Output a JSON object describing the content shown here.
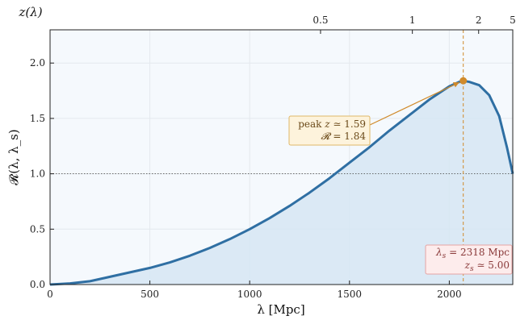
{
  "chart_data": {
    "type": "area",
    "xlabel": "λ [Mpc]",
    "ylabel": "𝓡(λ, λ_s)",
    "top_axis_label": "z(λ)",
    "xlim": [
      0,
      2318
    ],
    "ylim": [
      0,
      2.3
    ],
    "xticks": [
      0,
      500,
      1000,
      1500,
      2000
    ],
    "xtick_labels": [
      "0",
      "500",
      "1000",
      "1500",
      "2000"
    ],
    "yticks": [
      0.0,
      0.5,
      1.0,
      1.5,
      2.0
    ],
    "ytick_labels": [
      "0.0",
      "0.5",
      "1.0",
      "1.5",
      "2.0"
    ],
    "top_ticks": [
      {
        "label": "0.5",
        "x": 1355
      },
      {
        "label": "1",
        "x": 1815
      },
      {
        "label": "2",
        "x": 2147
      },
      {
        "label": "5",
        "x": 2318
      }
    ],
    "grid": true,
    "reference_line_y": 1.0,
    "series": [
      {
        "x": [
          0,
          100,
          200,
          300,
          400,
          500,
          600,
          700,
          800,
          900,
          1000,
          1100,
          1200,
          1300,
          1400,
          1500,
          1600,
          1700,
          1800,
          1900,
          2000,
          2050,
          2070,
          2100,
          2150,
          2200,
          2250,
          2290,
          2318
        ],
        "y": [
          0.0,
          0.01,
          0.03,
          0.07,
          0.11,
          0.15,
          0.2,
          0.26,
          0.33,
          0.41,
          0.5,
          0.6,
          0.71,
          0.83,
          0.96,
          1.1,
          1.24,
          1.39,
          1.53,
          1.67,
          1.79,
          1.83,
          1.84,
          1.83,
          1.8,
          1.71,
          1.52,
          1.23,
          1.0
        ]
      }
    ],
    "peak": {
      "x": 2070,
      "y": 1.84
    },
    "annotation_peak": {
      "line1_prefix": "peak ",
      "line1_var": "z",
      "line1_value": " ≃ 1.59",
      "line2_var": "𝓡",
      "line2_value": " = 1.84"
    },
    "annotation_source": {
      "line1_var": "λ",
      "line1_sub": "s",
      "line1_value": " = 2318 Mpc",
      "line2_var": "z",
      "line2_sub": "s",
      "line2_value": " ≃ 5.00"
    },
    "colors": {
      "line": "#2f6fa3",
      "fill": "#d6e6f3",
      "plot_bg": "#f5f9fd",
      "peak": "#d08a2a",
      "peak_box_bg": "#fdf3dc",
      "peak_box_border": "#e0b867",
      "peak_text": "#6b4a1a",
      "src_box_bg": "#fdecec",
      "src_box_border": "#e5a3a3",
      "src_text": "#8a3a3a",
      "grid": "#e4e9ee",
      "ref_line": "#555555"
    }
  }
}
